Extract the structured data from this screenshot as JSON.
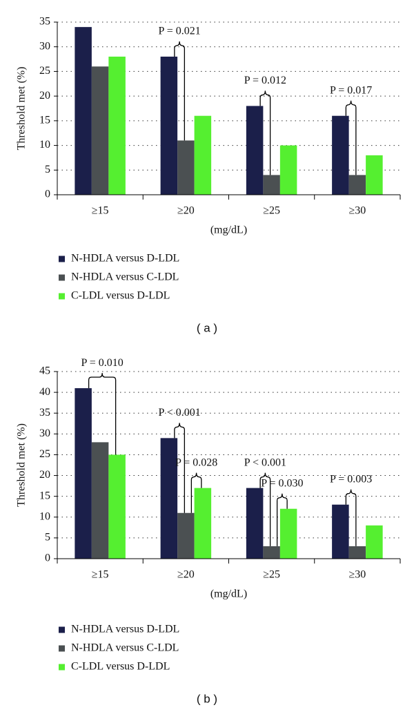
{
  "chart_data": [
    {
      "type": "bar",
      "y_label": "Threshold met (%)",
      "x_label": "(mg/dL)",
      "panel_label": "( a )",
      "categories": [
        "≥15",
        "≥20",
        "≥25",
        "≥30"
      ],
      "series": [
        {
          "name": "N-HDLA versus D-LDL",
          "color": "#1b1f4a",
          "values": [
            34,
            28,
            18,
            16
          ]
        },
        {
          "name": "N-HDLA versus C-LDL",
          "color": "#4b5052",
          "values": [
            26,
            11,
            4,
            4
          ]
        },
        {
          "name": "C-LDL versus D-LDL",
          "color": "#55ef30",
          "values": [
            28,
            16,
            10,
            8
          ]
        }
      ],
      "ylim": [
        0,
        35
      ],
      "yticks": [
        0,
        5,
        10,
        15,
        20,
        25,
        30,
        35
      ],
      "grid": true,
      "annotations": [
        "P = 0.021",
        "P = 0.012",
        "P = 0.017"
      ]
    },
    {
      "type": "bar",
      "y_label": "Threshold met (%)",
      "x_label": "(mg/dL)",
      "panel_label": "( b )",
      "categories": [
        "≥15",
        "≥20",
        "≥25",
        "≥30"
      ],
      "series": [
        {
          "name": "N-HDLA versus D-LDL",
          "color": "#1b1f4a",
          "values": [
            41,
            29,
            17,
            13
          ]
        },
        {
          "name": "N-HDLA versus C-LDL",
          "color": "#4b5052",
          "values": [
            28,
            11,
            3,
            3
          ]
        },
        {
          "name": "C-LDL versus D-LDL",
          "color": "#55ef30",
          "values": [
            25,
            17,
            12,
            8
          ]
        }
      ],
      "ylim": [
        0,
        45
      ],
      "yticks": [
        0,
        5,
        10,
        15,
        20,
        25,
        30,
        35,
        40,
        45
      ],
      "grid": true,
      "annotations": [
        "P = 0.010",
        "P < 0.001",
        "P = 0.028",
        "P < 0.001",
        "P = 0.030",
        "P = 0.003"
      ]
    }
  ]
}
